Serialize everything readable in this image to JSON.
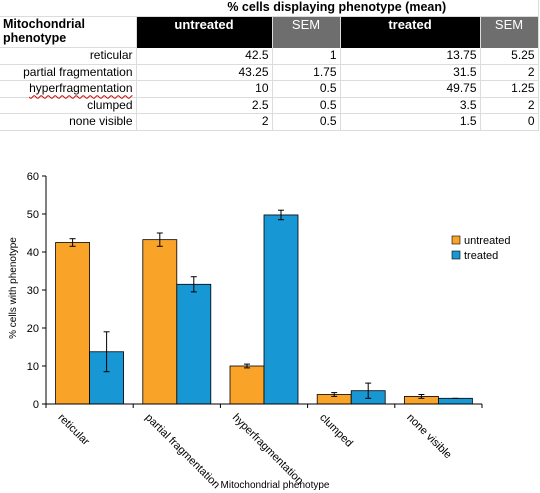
{
  "table": {
    "title": "% cells displaying phenotype (mean)",
    "row_header": [
      "Mitochondrial",
      "phenotype"
    ],
    "columns": [
      "untreated",
      "SEM",
      "treated",
      "SEM"
    ],
    "rows": [
      {
        "label": "reticular",
        "untreated": "42.5",
        "sem_u": "1",
        "treated": "13.75",
        "sem_t": "5.25"
      },
      {
        "label": "partial fragmentation",
        "untreated": "43.25",
        "sem_u": "1.75",
        "treated": "31.5",
        "sem_t": "2"
      },
      {
        "label": "hyperfragmentation",
        "untreated": "10",
        "sem_u": "0.5",
        "treated": "49.75",
        "sem_t": "1.25"
      },
      {
        "label": "clumped",
        "untreated": "2.5",
        "sem_u": "0.5",
        "treated": "3.5",
        "sem_t": "2"
      },
      {
        "label": "none visible",
        "untreated": "2",
        "sem_u": "0.5",
        "treated": "1.5",
        "sem_t": "0"
      }
    ]
  },
  "chart_data": {
    "type": "bar",
    "categories": [
      "reticular",
      "partial fragmentation",
      "hyperfragmentation",
      "clumped",
      "none visible"
    ],
    "series": [
      {
        "name": "untreated",
        "values": [
          42.5,
          43.25,
          10,
          2.5,
          2
        ],
        "errors": [
          1,
          1.75,
          0.5,
          0.5,
          0.5
        ],
        "color": "#f9a328"
      },
      {
        "name": "treated",
        "values": [
          13.75,
          31.5,
          49.75,
          3.5,
          1.5
        ],
        "errors": [
          5.25,
          2,
          1.25,
          2,
          0
        ],
        "color": "#1797d4"
      }
    ],
    "xlabel": "Mitochondrial phenotype",
    "ylabel": "% cells with phenotype",
    "ylim": [
      0,
      60
    ],
    "yticks": [
      0,
      10,
      20,
      30,
      40,
      50,
      60
    ],
    "grid": false,
    "legend": "right"
  }
}
